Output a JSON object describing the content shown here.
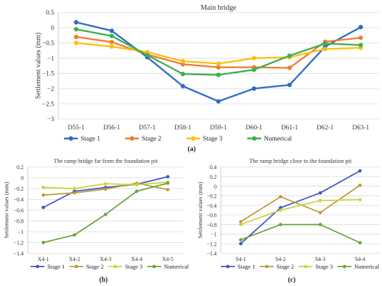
{
  "chart_data": [
    {
      "type": "line",
      "title": "Main bridge",
      "ylabel": "Settlement values (mm)",
      "panel_label": "(a)",
      "categories": [
        "D55-1",
        "D56-1",
        "D57-1",
        "D58-1",
        "D59-1",
        "D60-1",
        "D61-1",
        "D62-1",
        "D63-1"
      ],
      "ylim": [
        -3,
        0.5
      ],
      "yticks": [
        0.5,
        0,
        -0.5,
        -1,
        -1.5,
        -2,
        -2.5,
        -3
      ],
      "ytick_labels": [
        "0.5",
        "0",
        "−0.5",
        "−1",
        "−1.5",
        "−2",
        "−2.5",
        "−3"
      ],
      "grid": true,
      "legend_position": "bottom",
      "series": [
        {
          "name": "Stage 1",
          "color": "#2e6cc7",
          "values": [
            0.18,
            -0.1,
            -0.97,
            -1.92,
            -2.42,
            -2.0,
            -1.88,
            -0.62,
            0.02
          ]
        },
        {
          "name": "Stage 2",
          "color": "#ee7d31",
          "values": [
            -0.3,
            -0.47,
            -0.88,
            -1.2,
            -1.3,
            -1.3,
            -1.32,
            -0.46,
            -0.33
          ]
        },
        {
          "name": "Stage 3",
          "color": "#fdbf12",
          "values": [
            -0.5,
            -0.62,
            -0.8,
            -1.1,
            -1.18,
            -1.0,
            -0.97,
            -0.7,
            -0.66
          ]
        },
        {
          "name": "Numerical",
          "color": "#3db04b",
          "values": [
            -0.05,
            -0.27,
            -0.9,
            -1.52,
            -1.55,
            -1.38,
            -0.92,
            -0.52,
            -0.57
          ]
        }
      ]
    },
    {
      "type": "line",
      "title": "The ramp bridge far from the foundation pit",
      "ylabel": "Settlement values (mm)",
      "panel_label": "(b)",
      "categories": [
        "X4-1",
        "X4-2",
        "X4-3",
        "X4-4",
        "X4-5"
      ],
      "ylim": [
        -1.4,
        0.2
      ],
      "yticks": [
        0.2,
        0,
        -0.2,
        -0.4,
        -0.6,
        -0.8,
        -1,
        -1.2,
        -1.4
      ],
      "ytick_labels": [
        "0.2",
        "0",
        "−0.2",
        "−0.4",
        "−0.6",
        "−0.8",
        "−1",
        "−1.2",
        "−1.4"
      ],
      "grid": true,
      "legend_position": "bottom",
      "series": [
        {
          "name": "Stage 1",
          "color": "#3f52c6",
          "values": [
            -0.55,
            -0.25,
            -0.18,
            -0.12,
            0.02
          ]
        },
        {
          "name": "Stage 2",
          "color": "#bf9a37",
          "values": [
            -0.32,
            -0.28,
            -0.21,
            -0.1,
            -0.22
          ]
        },
        {
          "name": "Stage 3",
          "color": "#c6d43d",
          "values": [
            -0.18,
            -0.2,
            -0.11,
            -0.13,
            -0.08
          ]
        },
        {
          "name": "Numerical",
          "color": "#6aa33b",
          "values": [
            -1.2,
            -1.06,
            -0.68,
            -0.25,
            -0.1
          ]
        }
      ]
    },
    {
      "type": "line",
      "title": "The ramp bridge close to the foundation pit",
      "ylabel": "Settlement values (mm)",
      "panel_label": "(c)",
      "categories": [
        "S4-1",
        "S4-2",
        "S4-3",
        "S4-4"
      ],
      "ylim": [
        -1.4,
        0.4
      ],
      "yticks": [
        0.4,
        0.2,
        0,
        -0.2,
        -0.4,
        -0.6,
        -0.8,
        -1,
        -1.2,
        -1.4
      ],
      "ytick_labels": [
        "0.4",
        "0.2",
        "0",
        "−0.2",
        "−0.4",
        "−0.6",
        "−0.8",
        "−1",
        "−1.2",
        "−1.4"
      ],
      "grid": true,
      "legend_position": "bottom",
      "series": [
        {
          "name": "Stage 1",
          "color": "#3f52c6",
          "values": [
            -1.2,
            -0.45,
            -0.14,
            0.32
          ]
        },
        {
          "name": "Stage 2",
          "color": "#bf9a37",
          "values": [
            -0.74,
            -0.22,
            -0.55,
            0.02
          ]
        },
        {
          "name": "Stage 3",
          "color": "#c6d43d",
          "values": [
            -0.8,
            -0.5,
            -0.3,
            -0.28
          ]
        },
        {
          "name": "Numerical",
          "color": "#6aa33b",
          "values": [
            -1.12,
            -0.8,
            -0.8,
            -1.18
          ]
        }
      ]
    }
  ]
}
